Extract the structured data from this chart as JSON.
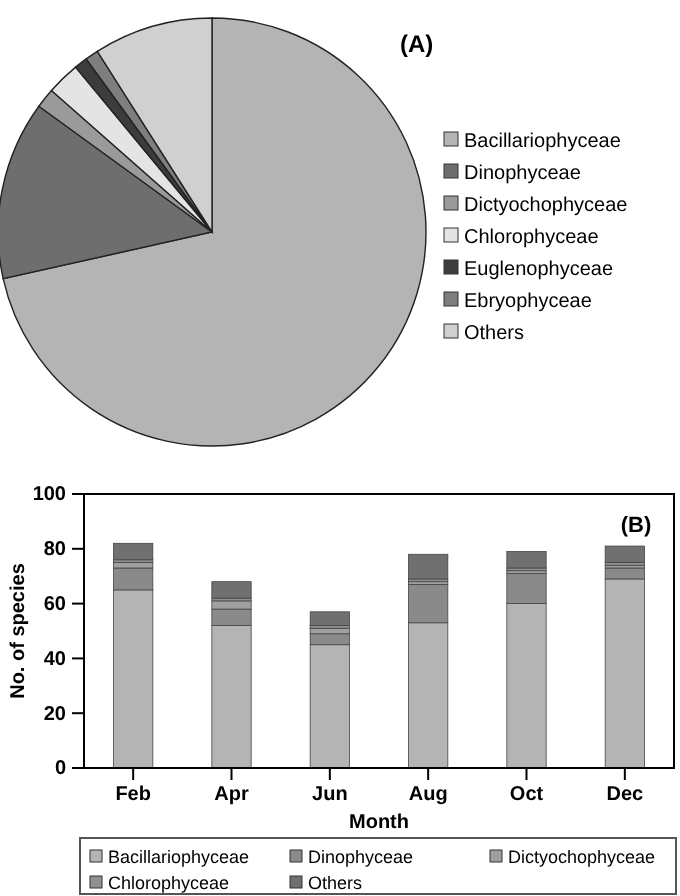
{
  "chart_data": [
    {
      "type": "pie",
      "title": "(A)",
      "legend": "right",
      "categories": [
        "Bacillariophyceae",
        "Dinophyceae",
        "Dictyochophyceae",
        "Chlorophyceae",
        "Euglenophyceae",
        "Ebryophyceae",
        "Others"
      ],
      "values": [
        71.5,
        13.5,
        1.5,
        2.5,
        1,
        1,
        9
      ],
      "colors": [
        "#b4b4b4",
        "#6e6e6e",
        "#9a9a9a",
        "#e4e4e4",
        "#3c3c3c",
        "#7e7e7e",
        "#d0d0d0"
      ]
    },
    {
      "type": "bar",
      "title": "(B)",
      "stacked": true,
      "legend": "bottom",
      "xlabel": "Month",
      "ylabel": "No. of species",
      "categories": [
        "Feb",
        "Apr",
        "Jun",
        "Aug",
        "Oct",
        "Dec"
      ],
      "ylim": [
        0,
        100
      ],
      "yticks": [
        0,
        20,
        40,
        60,
        80,
        100
      ],
      "series": [
        {
          "name": "Bacillariophyceae",
          "color": "#b4b4b4",
          "values": [
            65,
            52,
            45,
            53,
            60,
            69
          ]
        },
        {
          "name": "Dinophyceae",
          "color": "#8a8a8a",
          "values": [
            8,
            6,
            4,
            14,
            11,
            4
          ]
        },
        {
          "name": "Dictyochophyceae",
          "color": "#a0a0a0",
          "values": [
            2,
            3,
            2,
            1,
            1,
            1
          ]
        },
        {
          "name": "Chlorophyceae",
          "color": "#909090",
          "values": [
            1,
            1,
            1,
            1,
            1,
            1
          ]
        },
        {
          "name": "Others",
          "color": "#707070",
          "values": [
            6,
            6,
            5,
            9,
            6,
            6
          ]
        }
      ]
    }
  ]
}
